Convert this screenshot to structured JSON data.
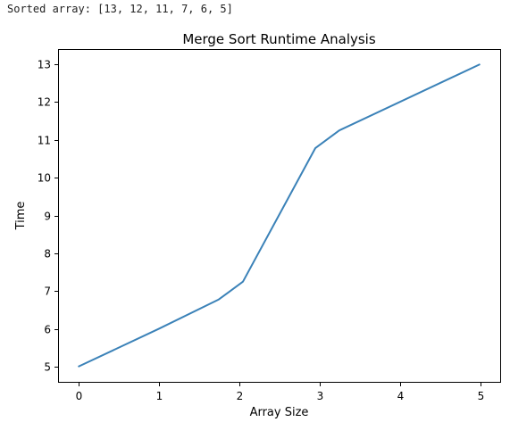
{
  "console": {
    "output_line": "Sorted array: [13, 12, 11, 7, 6, 5]"
  },
  "chart_data": {
    "type": "line",
    "title": "Merge Sort Runtime Analysis",
    "xlabel": "Array Size",
    "ylabel": "Time",
    "xlim": [
      -0.25,
      5.25
    ],
    "ylim": [
      4.6,
      13.4
    ],
    "xticks": [
      0,
      1,
      2,
      3,
      4,
      5
    ],
    "yticks": [
      5,
      6,
      7,
      8,
      9,
      10,
      11,
      12,
      13
    ],
    "grid": false,
    "series": [
      {
        "color": "#3b82b8",
        "x": [
          0,
          1.0,
          1.75,
          2.05,
          2.95,
          3.25,
          5
        ],
        "y": [
          5,
          6.0,
          6.78,
          7.25,
          10.78,
          11.25,
          13
        ]
      }
    ]
  }
}
